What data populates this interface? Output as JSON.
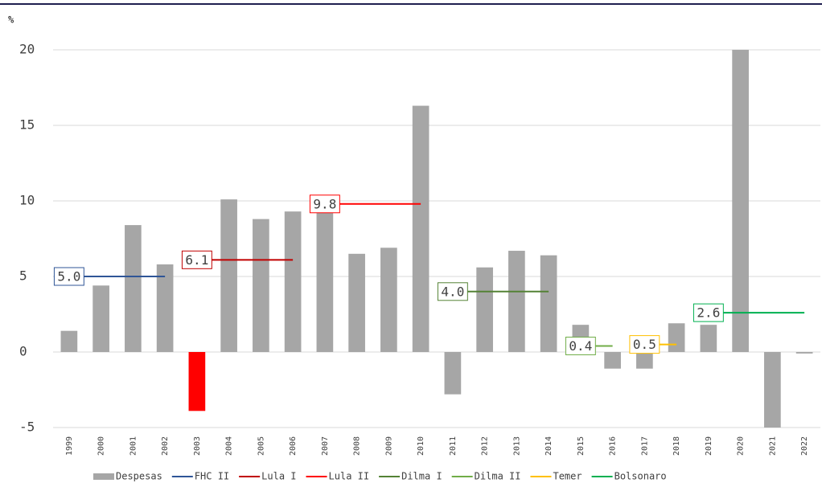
{
  "chart_data": {
    "type": "bar",
    "y_label": "%",
    "categories": [
      "1999",
      "2000",
      "2001",
      "2002",
      "2003",
      "2004",
      "2005",
      "2006",
      "2007",
      "2008",
      "2009",
      "2010",
      "2011",
      "2012",
      "2013",
      "2014",
      "2015",
      "2016",
      "2017",
      "2018",
      "2019",
      "2020",
      "2021",
      "2022"
    ],
    "ylim": [
      -5,
      20
    ],
    "yticks": [
      -5,
      0,
      5,
      10,
      15,
      20
    ],
    "grid": true,
    "legend": "bottom",
    "series": [
      {
        "name": "Despesas",
        "type": "bar",
        "color": "#a6a6a6",
        "colors": [
          "#a6a6a6",
          "#a6a6a6",
          "#a6a6a6",
          "#a6a6a6",
          "#ff0000",
          "#a6a6a6",
          "#a6a6a6",
          "#a6a6a6",
          "#a6a6a6",
          "#a6a6a6",
          "#a6a6a6",
          "#a6a6a6",
          "#a6a6a6",
          "#a6a6a6",
          "#a6a6a6",
          "#a6a6a6",
          "#a6a6a6",
          "#a6a6a6",
          "#a6a6a6",
          "#a6a6a6",
          "#a6a6a6",
          "#a6a6a6",
          "#a6a6a6",
          "#a6a6a6"
        ],
        "values": [
          1.4,
          4.4,
          8.4,
          5.8,
          -3.9,
          10.1,
          8.8,
          9.3,
          9.4,
          6.5,
          6.9,
          16.3,
          -2.8,
          5.6,
          6.7,
          6.4,
          1.8,
          -1.1,
          -1.1,
          1.9,
          1.8,
          20,
          -5,
          -0.1
        ]
      },
      {
        "name": "FHC II",
        "type": "line",
        "color": "#2f5597",
        "values": [
          5.0,
          5.0,
          5.0,
          5.0,
          null,
          null,
          null,
          null,
          null,
          null,
          null,
          null,
          null,
          null,
          null,
          null,
          null,
          null,
          null,
          null,
          null,
          null,
          null,
          null
        ],
        "value_labels": [
          "5.0",
          null,
          null,
          null,
          null,
          null,
          null,
          null,
          null,
          null,
          null,
          null,
          null,
          null,
          null,
          null,
          null,
          null,
          null,
          null,
          null,
          null,
          null,
          null
        ]
      },
      {
        "name": "Lula I",
        "type": "line",
        "color": "#c00000",
        "values": [
          null,
          null,
          null,
          null,
          6.1,
          6.1,
          6.1,
          6.1,
          null,
          null,
          null,
          null,
          null,
          null,
          null,
          null,
          null,
          null,
          null,
          null,
          null,
          null,
          null,
          null
        ],
        "value_labels": [
          null,
          null,
          null,
          null,
          "6.1",
          null,
          null,
          null,
          null,
          null,
          null,
          null,
          null,
          null,
          null,
          null,
          null,
          null,
          null,
          null,
          null,
          null,
          null,
          null
        ]
      },
      {
        "name": "Lula II",
        "type": "line",
        "color": "#ff0000",
        "values": [
          null,
          null,
          null,
          null,
          null,
          null,
          null,
          null,
          9.8,
          9.8,
          9.8,
          9.8,
          null,
          null,
          null,
          null,
          null,
          null,
          null,
          null,
          null,
          null,
          null,
          null
        ],
        "value_labels": [
          null,
          null,
          null,
          null,
          null,
          null,
          null,
          null,
          "9.8",
          null,
          null,
          null,
          null,
          null,
          null,
          null,
          null,
          null,
          null,
          null,
          null,
          null,
          null,
          null
        ]
      },
      {
        "name": "Dilma I",
        "type": "line",
        "color": "#548235",
        "values": [
          null,
          null,
          null,
          null,
          null,
          null,
          null,
          null,
          null,
          null,
          null,
          null,
          4.0,
          4.0,
          4.0,
          4.0,
          null,
          null,
          null,
          null,
          null,
          null,
          null,
          null
        ],
        "value_labels": [
          null,
          null,
          null,
          null,
          null,
          null,
          null,
          null,
          null,
          null,
          null,
          null,
          "4.0",
          null,
          null,
          null,
          null,
          null,
          null,
          null,
          null,
          null,
          null,
          null
        ]
      },
      {
        "name": "Dilma II",
        "type": "line",
        "color": "#70ad47",
        "values": [
          null,
          null,
          null,
          null,
          null,
          null,
          null,
          null,
          null,
          null,
          null,
          null,
          null,
          null,
          null,
          null,
          0.4,
          0.4,
          null,
          null,
          null,
          null,
          null,
          null
        ],
        "value_labels": [
          null,
          null,
          null,
          null,
          null,
          null,
          null,
          null,
          null,
          null,
          null,
          null,
          null,
          null,
          null,
          null,
          "0.4",
          null,
          null,
          null,
          null,
          null,
          null,
          null
        ]
      },
      {
        "name": "Temer",
        "type": "line",
        "color": "#ffc000",
        "values": [
          null,
          null,
          null,
          null,
          null,
          null,
          null,
          null,
          null,
          null,
          null,
          null,
          null,
          null,
          null,
          null,
          null,
          null,
          0.5,
          0.5,
          null,
          null,
          null,
          null
        ],
        "value_labels": [
          null,
          null,
          null,
          null,
          null,
          null,
          null,
          null,
          null,
          null,
          null,
          null,
          null,
          null,
          null,
          null,
          null,
          null,
          "0.5",
          null,
          null,
          null,
          null,
          null
        ]
      },
      {
        "name": "Bolsonaro",
        "type": "line",
        "color": "#00b050",
        "values": [
          null,
          null,
          null,
          null,
          null,
          null,
          null,
          null,
          null,
          null,
          null,
          null,
          null,
          null,
          null,
          null,
          null,
          null,
          null,
          null,
          2.6,
          2.6,
          2.6,
          2.6
        ],
        "value_labels": [
          null,
          null,
          null,
          null,
          null,
          null,
          null,
          null,
          null,
          null,
          null,
          null,
          null,
          null,
          null,
          null,
          null,
          null,
          null,
          null,
          "2.6",
          null,
          null,
          null
        ]
      }
    ]
  }
}
